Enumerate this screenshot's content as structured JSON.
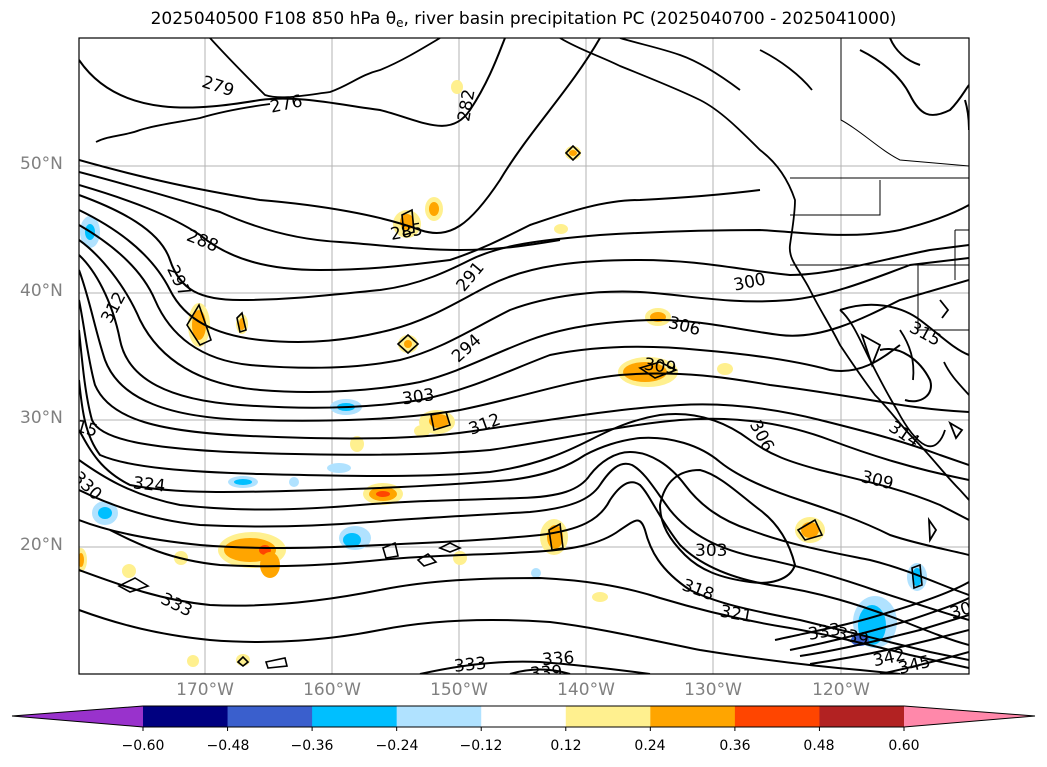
{
  "title": {
    "prefix": "2025040500 F108 850 hPa θ",
    "subscript": "e",
    "suffix": ", river basin precipitation PC (2025040700 - 2025041000)"
  },
  "map": {
    "lat_labels": [
      "50°N",
      "40°N",
      "30°N",
      "20°N"
    ],
    "lon_labels": [
      "170°W",
      "160°W",
      "150°W",
      "140°W",
      "130°W",
      "120°W"
    ],
    "contour_labels": [
      "279",
      "276",
      "282",
      "285",
      "288",
      "291",
      "294",
      "297",
      "300",
      "303",
      "306",
      "309",
      "312",
      "315",
      "312",
      "306",
      "309",
      "303",
      "318",
      "321",
      "324",
      "330",
      "333",
      "333",
      "336",
      "339",
      "342",
      "345",
      "315",
      "314",
      "306",
      "339",
      "333"
    ]
  },
  "colorbar": {
    "ticks": [
      "−0.60",
      "−0.48",
      "−0.36",
      "−0.24",
      "−0.12",
      "0.12",
      "0.24",
      "0.36",
      "0.48",
      "0.60"
    ],
    "colors": {
      "under": "#9932cc",
      "bins": [
        "#000080",
        "#3a5fcd",
        "#00bfff",
        "#b0e2ff",
        "#ffffff",
        "#fff08f",
        "#ffa500",
        "#ff4500",
        "#b22222"
      ],
      "over": "#ff88aa"
    }
  }
}
